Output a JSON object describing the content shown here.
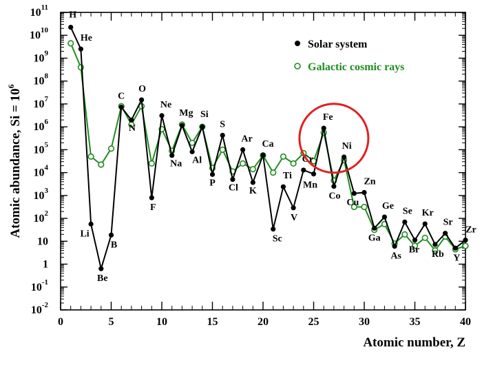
{
  "chart_data": {
    "type": "line",
    "xlabel": "Atomic number, Z",
    "ylabel": "Atomic abundance, Si = 10",
    "ylabel_sup": "6",
    "x_ticks": [
      0,
      5,
      10,
      15,
      20,
      25,
      30,
      35,
      40
    ],
    "xlim": [
      0,
      40
    ],
    "ylim_log10": [
      -2,
      11
    ],
    "y_ticks": [
      {
        "exp": 11,
        "base": "10",
        "sup": "11"
      },
      {
        "exp": 10,
        "base": "10",
        "sup": "10"
      },
      {
        "exp": 9,
        "base": "10",
        "sup": "9"
      },
      {
        "exp": 8,
        "base": "10",
        "sup": "8"
      },
      {
        "exp": 7,
        "base": "10",
        "sup": "7"
      },
      {
        "exp": 6,
        "base": "10",
        "sup": "6"
      },
      {
        "exp": 5,
        "base": "10",
        "sup": "5"
      },
      {
        "exp": 4,
        "base": "10",
        "sup": "4"
      },
      {
        "exp": 3,
        "base": "10",
        "sup": "3"
      },
      {
        "exp": 2,
        "base": "10",
        "sup": "2"
      },
      {
        "exp": 1,
        "base": "10",
        "sup": ""
      },
      {
        "exp": 0,
        "base": "1",
        "sup": ""
      },
      {
        "exp": -1,
        "base": "10",
        "sup": "-1"
      },
      {
        "exp": -2,
        "base": "10",
        "sup": "-2"
      }
    ],
    "legend_position": "top-right",
    "series": [
      {
        "name": "Solar system",
        "color": "#000000",
        "marker": "filled-circle",
        "x": [
          1,
          2,
          3,
          4,
          5,
          6,
          7,
          8,
          9,
          10,
          11,
          12,
          13,
          14,
          15,
          16,
          17,
          18,
          19,
          20,
          21,
          22,
          23,
          24,
          25,
          26,
          27,
          28,
          29,
          30,
          31,
          32,
          33,
          34,
          35,
          36,
          37,
          38,
          39,
          40
        ],
        "log10_y": [
          10.35,
          9.4,
          1.75,
          -0.2,
          1.27,
          6.86,
          6.3,
          7.18,
          2.9,
          6.49,
          4.75,
          6.06,
          4.91,
          6.0,
          3.92,
          5.63,
          3.7,
          5.0,
          3.57,
          4.77,
          1.53,
          3.38,
          2.46,
          4.11,
          3.94,
          5.94,
          3.4,
          4.68,
          3.09,
          3.13,
          1.57,
          2.06,
          0.78,
          1.84,
          1.05,
          1.76,
          0.86,
          1.35,
          0.7,
          1.05
        ]
      },
      {
        "name": "Galactic cosmic rays",
        "color": "#1f8c1f",
        "marker": "open-circle",
        "x": [
          1,
          2,
          3,
          4,
          5,
          6,
          7,
          8,
          9,
          10,
          11,
          12,
          13,
          14,
          15,
          16,
          17,
          18,
          19,
          20,
          21,
          22,
          23,
          24,
          25,
          26,
          27,
          28,
          29,
          30,
          31,
          32,
          33,
          34,
          35,
          36,
          37,
          38,
          39,
          40
        ],
        "log10_y": [
          9.65,
          8.6,
          4.7,
          4.35,
          5.05,
          6.9,
          6.1,
          6.9,
          4.4,
          5.9,
          4.95,
          6.1,
          5.3,
          6.0,
          4.2,
          5.0,
          4.05,
          4.4,
          4.15,
          4.75,
          4.0,
          4.7,
          4.4,
          4.85,
          4.5,
          5.75,
          3.65,
          4.55,
          2.5,
          2.5,
          1.5,
          1.75,
          0.9,
          1.3,
          0.8,
          1.15,
          0.6,
          1.2,
          0.65,
          0.8
        ]
      }
    ],
    "point_labels": [
      {
        "z": 1,
        "text": "H"
      },
      {
        "z": 2,
        "text": "He"
      },
      {
        "z": 3,
        "text": "Li"
      },
      {
        "z": 4,
        "text": "Be"
      },
      {
        "z": 5,
        "text": "B"
      },
      {
        "z": 6,
        "text": "C"
      },
      {
        "z": 7,
        "text": "N"
      },
      {
        "z": 8,
        "text": "O"
      },
      {
        "z": 9,
        "text": "F"
      },
      {
        "z": 10,
        "text": "Ne"
      },
      {
        "z": 11,
        "text": "Na"
      },
      {
        "z": 12,
        "text": "Mg"
      },
      {
        "z": 13,
        "text": "Al"
      },
      {
        "z": 14,
        "text": "Si"
      },
      {
        "z": 15,
        "text": "P"
      },
      {
        "z": 16,
        "text": "S"
      },
      {
        "z": 17,
        "text": "Cl"
      },
      {
        "z": 18,
        "text": "Ar"
      },
      {
        "z": 19,
        "text": "K"
      },
      {
        "z": 20,
        "text": "Ca"
      },
      {
        "z": 21,
        "text": "Sc"
      },
      {
        "z": 22,
        "text": "Ti"
      },
      {
        "z": 23,
        "text": "V"
      },
      {
        "z": 24,
        "text": "Cr"
      },
      {
        "z": 25,
        "text": "Mn"
      },
      {
        "z": 26,
        "text": "Fe"
      },
      {
        "z": 27,
        "text": "Co"
      },
      {
        "z": 28,
        "text": "Ni"
      },
      {
        "z": 29,
        "text": "Cu"
      },
      {
        "z": 30,
        "text": "Zn"
      },
      {
        "z": 31,
        "text": "Ga"
      },
      {
        "z": 32,
        "text": "Ge"
      },
      {
        "z": 33,
        "text": "As"
      },
      {
        "z": 34,
        "text": "Se"
      },
      {
        "z": 35,
        "text": "Br"
      },
      {
        "z": 36,
        "text": "Kr"
      },
      {
        "z": 37,
        "text": "Rb"
      },
      {
        "z": 38,
        "text": "Sr"
      },
      {
        "z": 39,
        "text": "Y"
      },
      {
        "z": 40,
        "text": "Zr"
      }
    ],
    "highlight": {
      "shape": "circle",
      "color": "#e02020",
      "z_center": 27,
      "log10_center": 5.5
    }
  }
}
